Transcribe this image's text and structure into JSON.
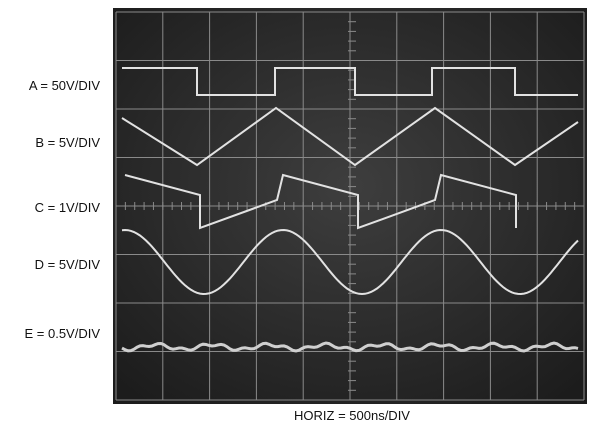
{
  "channels": [
    {
      "label": "A = 50V/DIV"
    },
    {
      "label": "B = 5V/DIV"
    },
    {
      "label": "C = 1V/DIV"
    },
    {
      "label": "D = 5V/DIV"
    },
    {
      "label": "E = 0.5V/DIV"
    }
  ],
  "horizontal_scale": "HORIZ = 500ns/DIV"
}
